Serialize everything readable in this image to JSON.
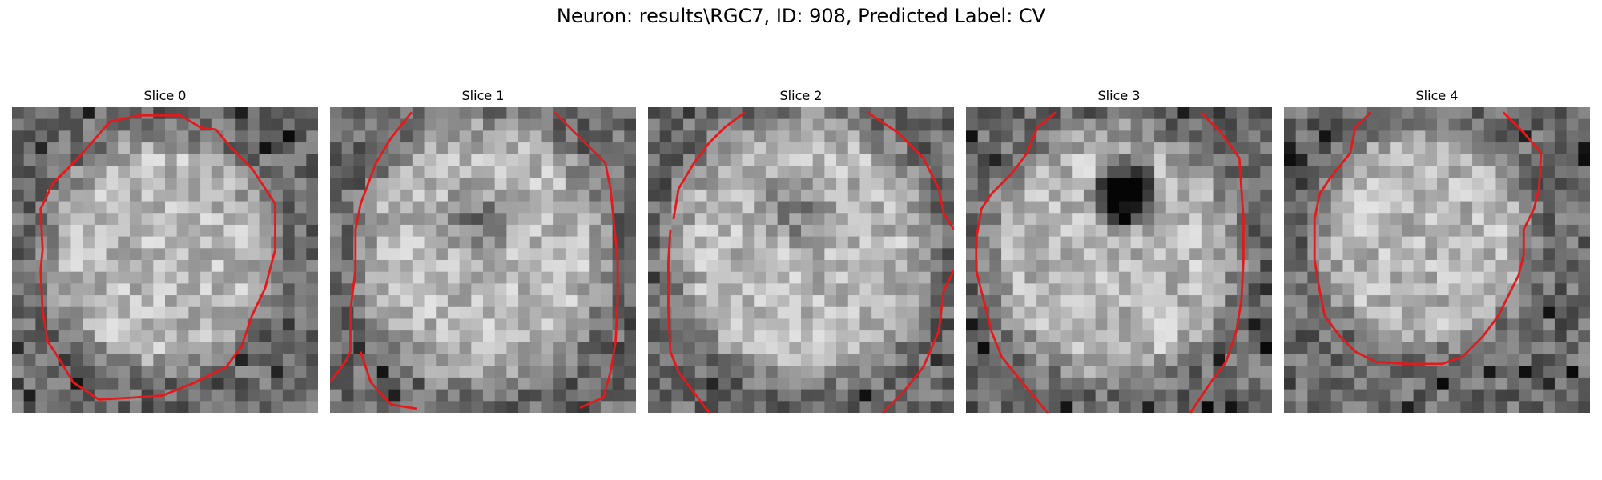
{
  "figure": {
    "title": "Neuron: results\\RGC7, ID: 908, Predicted Label: CV"
  },
  "panels": [
    {
      "title": "Slice 0"
    },
    {
      "title": "Slice 1"
    },
    {
      "title": "Slice 2"
    },
    {
      "title": "Slice 3"
    },
    {
      "title": "Slice 4"
    }
  ],
  "colors": {
    "contour": "#e31a1c",
    "colormap": "grayscale"
  }
}
